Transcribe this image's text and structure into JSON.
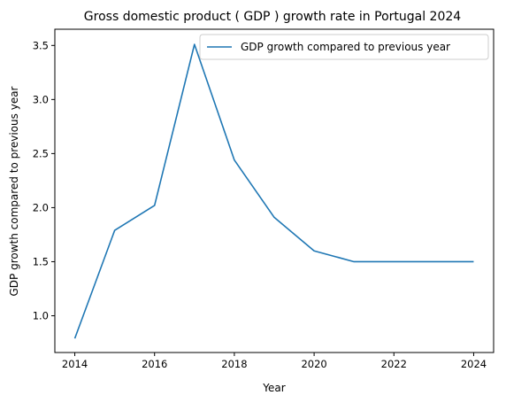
{
  "chart_data": {
    "type": "line",
    "title": "Gross domestic product ( GDP ) growth rate in Portugal 2024",
    "xlabel": "Year",
    "ylabel": "GDP growth compared to previous year",
    "x": [
      2014,
      2015,
      2016,
      2017,
      2018,
      2019,
      2020,
      2021,
      2022,
      2023,
      2024
    ],
    "series": [
      {
        "name": "GDP growth compared to previous year",
        "values": [
          0.79,
          1.79,
          2.02,
          3.51,
          2.44,
          1.91,
          1.6,
          1.5,
          1.5,
          1.5,
          1.5
        ],
        "color": "#1f77b4"
      }
    ],
    "xlim": [
      2013.5,
      2024.5
    ],
    "ylim": [
      0.66,
      3.65
    ],
    "xticks": [
      2014,
      2016,
      2018,
      2020,
      2022,
      2024
    ],
    "yticks": [
      1.0,
      1.5,
      2.0,
      2.5,
      3.0,
      3.5
    ],
    "ytick_labels": [
      "1.0",
      "1.5",
      "2.0",
      "2.5",
      "3.0",
      "3.5"
    ],
    "grid": false,
    "legend": "top-right"
  }
}
